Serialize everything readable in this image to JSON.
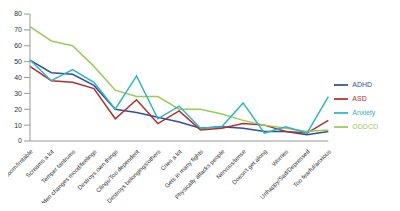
{
  "chart_data": {
    "type": "line",
    "categories": [
      "Stubborn/Irritable",
      "Screams a lot",
      "Temper tantrums",
      "Sudden changes mood/feelings",
      "Destroys own things",
      "Clings/Too dependent",
      "Destroys belongings/others",
      "Cries a lot",
      "Gets in many fights",
      "Physically attacks people",
      "Nervous/tense",
      "Doesn't get along",
      "Worries",
      "Unhappy/Sad/Depressed",
      "Too fearful/anxious"
    ],
    "series": [
      {
        "name": "ADHD",
        "color": "#2f4f9f",
        "values": [
          51,
          43,
          42,
          35,
          20,
          18,
          15,
          12,
          8,
          9,
          8,
          6,
          6,
          4,
          6
        ]
      },
      {
        "name": "ASD",
        "color": "#b2322a",
        "values": [
          47,
          38,
          37,
          33,
          14,
          26,
          11,
          19,
          7,
          8,
          11,
          10,
          6,
          5,
          13
        ]
      },
      {
        "name": "ODDCD",
        "color": "#9ccb5a",
        "values": [
          72,
          63,
          60,
          47,
          32,
          28,
          28,
          20,
          20,
          17,
          13,
          10,
          8,
          6,
          7
        ]
      },
      {
        "name": "Anxiety",
        "color": "#2db5c6",
        "values": [
          51,
          38,
          45,
          37,
          20,
          41,
          14,
          22,
          8,
          9,
          24,
          5,
          9,
          5,
          28
        ]
      }
    ],
    "ylim": [
      0,
      80
    ],
    "yticks": [
      0,
      10,
      20,
      30,
      40,
      50,
      60,
      70,
      80
    ],
    "grid": false,
    "legend": "right"
  }
}
